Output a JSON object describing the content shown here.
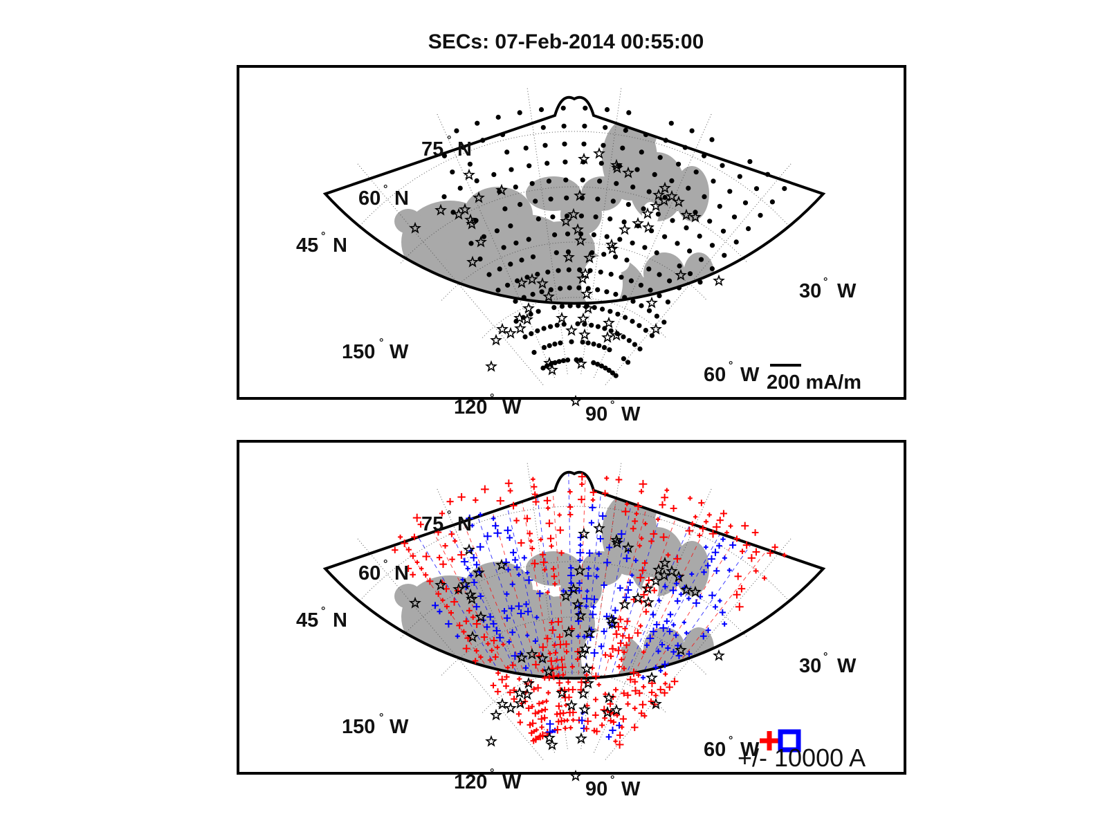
{
  "figure": {
    "title": "SECs: 07-Feb-2014 00:55:00",
    "colors": {
      "land": "#a9a9a9",
      "ocean": "#ffffff",
      "frame": "#000000",
      "grid": "#555555",
      "positive_current": "#ff0000",
      "negative_current": "#0000ff",
      "station": "#000000"
    }
  },
  "grid_labels": {
    "latitudes": [
      {
        "value": "75",
        "suffix": "N"
      },
      {
        "value": "60",
        "suffix": "N"
      },
      {
        "value": "45",
        "suffix": "N"
      }
    ],
    "longitudes": [
      {
        "value": "150",
        "suffix": "W"
      },
      {
        "value": "120",
        "suffix": "W"
      },
      {
        "value": "90",
        "suffix": "W"
      },
      {
        "value": "60",
        "suffix": "W"
      },
      {
        "value": "30",
        "suffix": "W"
      }
    ]
  },
  "panels": [
    {
      "name": "equivalent-currents",
      "scale_bar": {
        "value": 200,
        "label": "200 mA/m"
      },
      "markers": {
        "grid_points": "black-dot",
        "stations": "star-icon"
      }
    },
    {
      "name": "sec-amplitudes",
      "legend": {
        "label": "+/- 10000 A",
        "positive_symbol": "plus",
        "negative_symbol": "square"
      },
      "markers": {
        "grid_points": "plus-cross",
        "stations": "star-icon"
      }
    }
  ]
}
